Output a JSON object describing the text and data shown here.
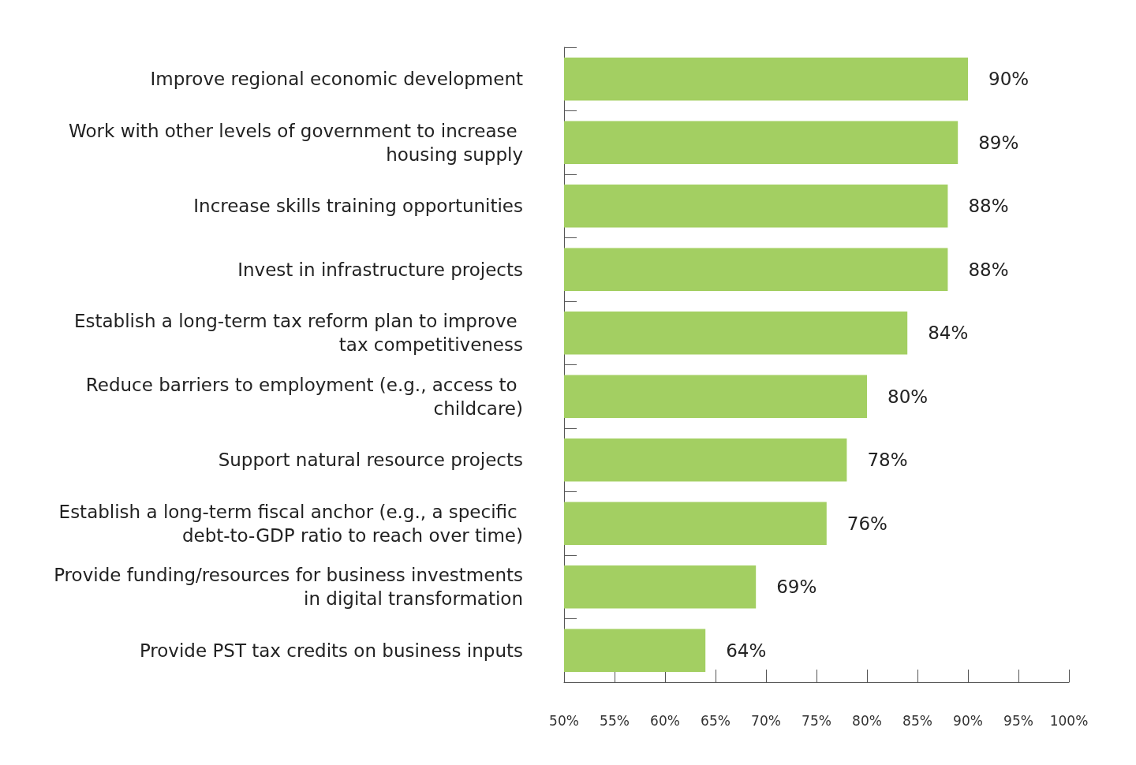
{
  "chart_data": {
    "type": "bar",
    "orientation": "horizontal",
    "categories": [
      "Improve regional economic development",
      "Work with other levels of government to increase housing supply",
      "Increase skills training opportunities",
      "Invest in infrastructure projects",
      "Establish a long-term tax reform plan to improve tax competitiveness",
      "Reduce barriers to employment (e.g., access to childcare)",
      "Support natural resource projects",
      "Establish a long-term fiscal anchor (e.g., a specific debt-to-GDP ratio to reach over time)",
      "Provide funding/resources for business investments in digital transformation",
      "Provide PST tax credits on business inputs"
    ],
    "values": [
      90,
      89,
      88,
      88,
      84,
      80,
      78,
      76,
      69,
      64
    ],
    "value_labels": [
      "90%",
      "89%",
      "88%",
      "88%",
      "84%",
      "80%",
      "78%",
      "76%",
      "69%",
      "64%"
    ],
    "color": "#a3cf62",
    "xlim": [
      50,
      100
    ],
    "xticks": [
      {
        "value": 50,
        "label": "50%"
      },
      {
        "value": 55,
        "label": "55%"
      },
      {
        "value": 60,
        "label": "60%"
      },
      {
        "value": 65,
        "label": "65%"
      },
      {
        "value": 70,
        "label": "70%"
      },
      {
        "value": 75,
        "label": "75%"
      },
      {
        "value": 80,
        "label": "80%"
      },
      {
        "value": 85,
        "label": "85%"
      },
      {
        "value": 90,
        "label": "90%"
      },
      {
        "value": 95,
        "label": "95%"
      },
      {
        "value": 100,
        "label": "100%"
      }
    ]
  }
}
